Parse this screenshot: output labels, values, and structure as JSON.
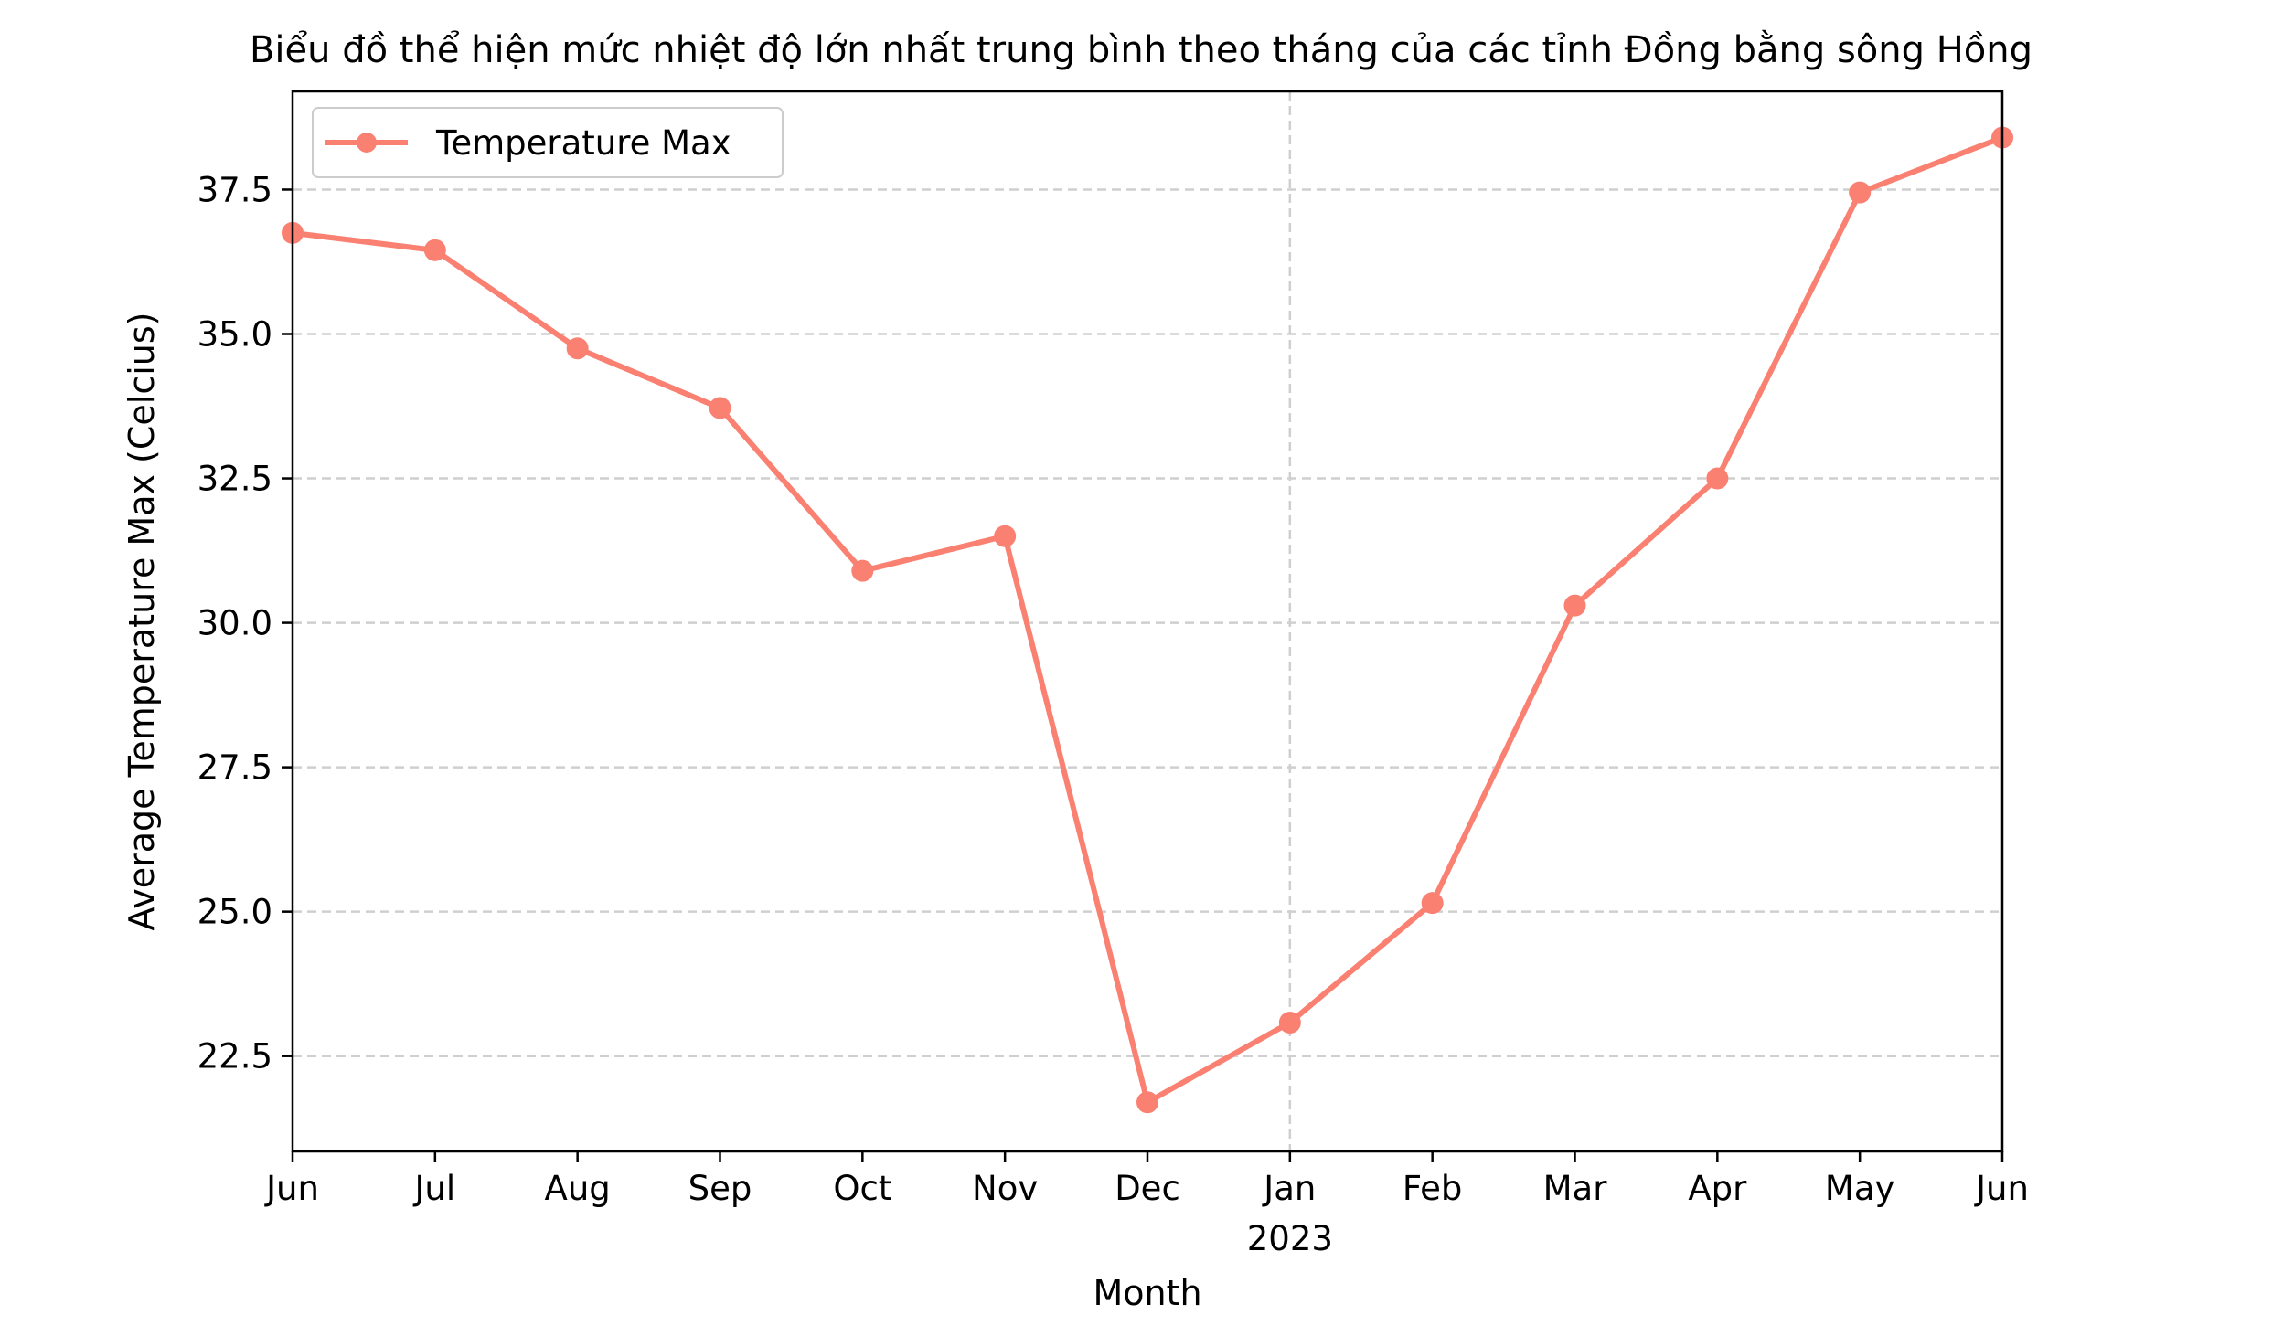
{
  "chart_data": {
    "type": "line",
    "title": "Biểu đồ thể hiện mức nhiệt độ lớn nhất trung bình theo tháng của các tỉnh Đồng bằng sông Hồng",
    "xlabel": "Month",
    "ylabel": "Average Temperature Max (Celcius)",
    "x": [
      "2022-06",
      "2022-07",
      "2022-08",
      "2022-09",
      "2022-10",
      "2022-11",
      "2022-12",
      "2023-01",
      "2023-02",
      "2023-03",
      "2023-04",
      "2023-05",
      "2023-06"
    ],
    "x_tick_labels": [
      "Jun",
      "Jul",
      "Aug",
      "Sep",
      "Oct",
      "Nov",
      "Dec",
      "Jan",
      "Feb",
      "Mar",
      "Apr",
      "May",
      "Jun"
    ],
    "x_year_label": "2023",
    "series": [
      {
        "name": "Temperature Max",
        "color": "#fa8072",
        "values": [
          36.75,
          36.45,
          34.75,
          33.72,
          30.9,
          31.5,
          21.7,
          23.08,
          25.15,
          30.3,
          32.5,
          37.45,
          38.4
        ]
      }
    ],
    "ylim": [
      20.85,
      39.2
    ],
    "y_ticks": [
      22.5,
      25.0,
      27.5,
      30.0,
      32.5,
      35.0,
      37.5
    ],
    "y_tick_labels": [
      "22.5",
      "25.0",
      "27.5",
      "30.0",
      "32.5",
      "35.0",
      "37.5"
    ],
    "grid": "horizontal dashed, plus vertical at Jan 2023",
    "legend_position": "upper-left"
  }
}
